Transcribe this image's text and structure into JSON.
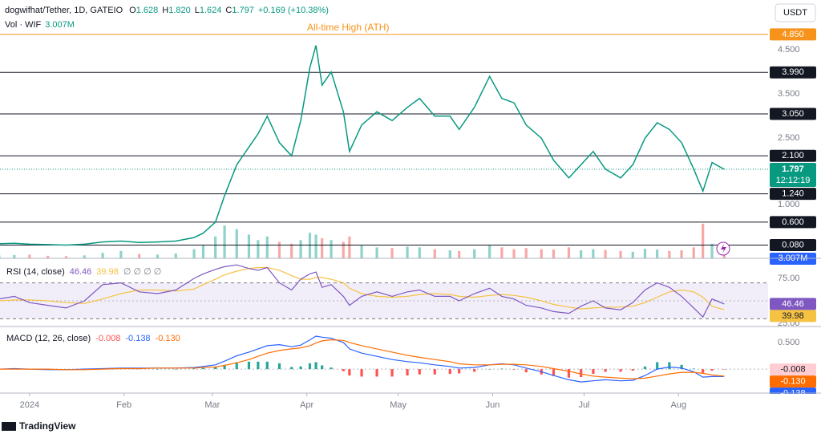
{
  "toolbar": {
    "currency": "USDT"
  },
  "footer": {
    "brand": "TradingView"
  },
  "chart_data": [
    {
      "type": "line",
      "title": "dogwifhat/Tether, 1D, GATEIO",
      "ohlc": [
        {
          "key": "O",
          "value": "1.628"
        },
        {
          "key": "H",
          "value": "1.820"
        },
        {
          "key": "L",
          "value": "1.624"
        },
        {
          "key": "C",
          "value": "1.797"
        }
      ],
      "change": "+0.169 (+10.38%)",
      "x": [
        -10,
        -5,
        0,
        6,
        12,
        18,
        24,
        30,
        36,
        42,
        48,
        54,
        57,
        61,
        64,
        68,
        72,
        75,
        78,
        82,
        86,
        89,
        92,
        94,
        96,
        99,
        103,
        105,
        109,
        114,
        119,
        124,
        128,
        133,
        138,
        141,
        146,
        151,
        155,
        159,
        163,
        168,
        172,
        177,
        181,
        185,
        189,
        194,
        198,
        202,
        206,
        210,
        214,
        218,
        221,
        224,
        228
      ],
      "series": [
        {
          "color": "#089981",
          "values": [
            0.11,
            0.12,
            0.1,
            0.09,
            0.08,
            0.1,
            0.15,
            0.17,
            0.14,
            0.15,
            0.17,
            0.25,
            0.35,
            0.6,
            1.2,
            1.9,
            2.3,
            2.6,
            3.0,
            2.4,
            2.1,
            2.9,
            4.1,
            4.6,
            3.7,
            4.0,
            3.1,
            2.2,
            2.8,
            3.1,
            2.9,
            3.2,
            3.4,
            3.0,
            3.0,
            2.7,
            3.2,
            3.9,
            3.4,
            3.3,
            2.8,
            2.5,
            2.0,
            1.6,
            1.9,
            2.2,
            1.8,
            1.6,
            1.9,
            2.5,
            2.85,
            2.7,
            2.4,
            1.8,
            1.3,
            1.95,
            1.797
          ]
        }
      ],
      "xlim": [
        -9.7,
        242.4
      ],
      "xticks": [
        {
          "value": 0,
          "label": "2024"
        },
        {
          "value": 31,
          "label": "Feb"
        },
        {
          "value": 60,
          "label": "Mar"
        },
        {
          "value": 91,
          "label": "Apr"
        },
        {
          "value": 121,
          "label": "May"
        },
        {
          "value": 152,
          "label": "Jun"
        },
        {
          "value": 182,
          "label": "Jul"
        },
        {
          "value": 213,
          "label": "Aug"
        }
      ],
      "ylim": [
        -0.22,
        5.63
      ],
      "yticks": [
        {
          "value": 4.5,
          "label": "4.500"
        },
        {
          "value": 3.5,
          "label": "3.500"
        },
        {
          "value": 2.5,
          "label": "2.500"
        },
        {
          "value": 1,
          "label": "1.000"
        }
      ],
      "levels": [
        {
          "value": 4.85,
          "label": "4.850",
          "color": "#f7931a"
        },
        {
          "value": 3.99,
          "label": "3.990",
          "color": "#131722"
        },
        {
          "value": 3.05,
          "label": "3.050",
          "color": "#131722"
        },
        {
          "value": 2.1,
          "label": "2.100",
          "color": "#131722"
        },
        {
          "value": 1.24,
          "label": "1.240",
          "color": "#131722"
        },
        {
          "value": 0.6,
          "label": "0.600",
          "color": "#131722"
        },
        {
          "value": 0.08,
          "label": "0.080",
          "color": "#131722"
        }
      ],
      "annotation": {
        "text": "All-time High (ATH)",
        "value": 4.85,
        "color": "#f7931a"
      },
      "last_price": {
        "value": 1.797,
        "label": "1.797",
        "countdown": "12:12:19",
        "color": "#089981"
      },
      "volume": {
        "title": "Vol · WIF",
        "label": "3.007M",
        "color": "#2962ff",
        "up_color": "#8fd2c9",
        "down_color": "#f7a9a7",
        "vlim": [
          0,
          22
        ],
        "values": [
          0.8,
          0.9,
          1.0,
          0.7,
          0.6,
          0.8,
          1.5,
          2.0,
          1.2,
          1.0,
          1.3,
          2.5,
          3.5,
          6.0,
          9.0,
          8.0,
          6.5,
          5.0,
          6.0,
          4.5,
          4.0,
          5.0,
          7.0,
          6.5,
          5.5,
          5.0,
          4.5,
          6.0,
          3.5,
          3.0,
          2.8,
          3.2,
          3.0,
          2.5,
          2.2,
          2.0,
          2.5,
          3.5,
          3.0,
          2.5,
          2.8,
          2.5,
          2.4,
          3.0,
          2.2,
          2.5,
          2.3,
          2.0,
          1.8,
          2.6,
          2.4,
          2.0,
          2.2,
          3.0,
          9.5,
          4.0,
          3.007
        ]
      }
    },
    {
      "type": "line",
      "title": "RSI (14, close)",
      "extra": "∅ ∅ ∅ ∅",
      "ylim": [
        21.4,
        97.3
      ],
      "yticks": [
        {
          "value": 75,
          "label": "75.00"
        },
        {
          "value": 25,
          "label": "25.00"
        }
      ],
      "band": [
        70,
        30
      ],
      "midline": 50,
      "band_color": "#7e57c2",
      "series": [
        {
          "color": "#7e57c2",
          "last_label": "46.46",
          "values": [
            52,
            55,
            48,
            45,
            42,
            50,
            68,
            70,
            60,
            58,
            62,
            75,
            80,
            85,
            88,
            90,
            86,
            84,
            87,
            70,
            62,
            74,
            80,
            82,
            65,
            68,
            55,
            45,
            55,
            60,
            55,
            60,
            62,
            55,
            55,
            50,
            58,
            64,
            55,
            52,
            45,
            42,
            38,
            36,
            44,
            50,
            42,
            40,
            48,
            62,
            70,
            65,
            55,
            42,
            32,
            52,
            46.46
          ]
        },
        {
          "color": "#f5c242",
          "last_label": "39.98",
          "values": [
            50,
            51,
            51,
            50,
            48,
            47,
            52,
            58,
            62,
            62,
            61,
            63,
            68,
            74,
            79,
            83,
            86,
            87,
            87,
            84,
            78,
            74,
            74,
            76,
            76,
            74,
            70,
            64,
            58,
            55,
            54,
            55,
            57,
            58,
            57,
            55,
            54,
            56,
            57,
            56,
            54,
            50,
            46,
            43,
            41,
            42,
            43,
            43,
            44,
            48,
            54,
            60,
            62,
            60,
            54,
            44,
            39.98
          ]
        }
      ]
    },
    {
      "type": "macd",
      "title": "MACD (12, 26, close)",
      "ylim": [
        -0.45,
        0.8
      ],
      "yticks": [
        {
          "value": 0.5,
          "label": "0.500"
        }
      ],
      "midline": 0,
      "series": [
        {
          "type": "histogram",
          "color": "#ffcdd2",
          "up_color": "#26a69a",
          "down_color": "#ff5252",
          "last_label": "-0.008",
          "values": [
            0,
            0.01,
            0,
            -0.01,
            0,
            0.01,
            0.01,
            0.01,
            0.01,
            0,
            0,
            0.01,
            0.02,
            0.04,
            0.08,
            0.13,
            0.14,
            0.14,
            0.14,
            0.11,
            0.04,
            0.05,
            0.11,
            0.13,
            0.07,
            0.03,
            -0.04,
            -0.12,
            -0.14,
            -0.14,
            -0.14,
            -0.12,
            -0.1,
            -0.1,
            -0.09,
            -0.08,
            -0.05,
            0,
            0.01,
            -0.01,
            -0.06,
            -0.1,
            -0.13,
            -0.16,
            -0.15,
            -0.09,
            -0.05,
            -0.05,
            -0.03,
            0.05,
            0.13,
            0.13,
            0.08,
            0.01,
            -0.07,
            -0.03,
            -0.008
          ]
        },
        {
          "type": "line",
          "color": "#2962ff",
          "last_label": "-0.138",
          "values": [
            0,
            0.01,
            0,
            -0.01,
            -0.01,
            0,
            0.01,
            0.02,
            0.02,
            0.02,
            0.02,
            0.03,
            0.05,
            0.08,
            0.15,
            0.25,
            0.32,
            0.38,
            0.44,
            0.46,
            0.42,
            0.45,
            0.55,
            0.62,
            0.6,
            0.58,
            0.5,
            0.38,
            0.3,
            0.24,
            0.18,
            0.14,
            0.12,
            0.08,
            0.05,
            0.02,
            0.03,
            0.08,
            0.1,
            0.08,
            0.02,
            -0.05,
            -0.12,
            -0.2,
            -0.24,
            -0.22,
            -0.2,
            -0.22,
            -0.21,
            -0.12,
            0,
            0.04,
            0.02,
            -0.05,
            -0.15,
            -0.14,
            -0.138
          ]
        },
        {
          "type": "line",
          "color": "#ff6d00",
          "last_label": "-0.130",
          "values": [
            0,
            0,
            0,
            0,
            -0.01,
            -0.01,
            0,
            0.01,
            0.01,
            0.02,
            0.02,
            0.02,
            0.03,
            0.04,
            0.07,
            0.12,
            0.18,
            0.24,
            0.3,
            0.35,
            0.38,
            0.4,
            0.44,
            0.49,
            0.53,
            0.55,
            0.54,
            0.5,
            0.44,
            0.38,
            0.32,
            0.26,
            0.22,
            0.18,
            0.14,
            0.1,
            0.08,
            0.08,
            0.09,
            0.09,
            0.08,
            0.05,
            0.01,
            -0.04,
            -0.09,
            -0.13,
            -0.15,
            -0.17,
            -0.18,
            -0.17,
            -0.13,
            -0.09,
            -0.06,
            -0.06,
            -0.08,
            -0.11,
            -0.13
          ]
        }
      ]
    }
  ]
}
